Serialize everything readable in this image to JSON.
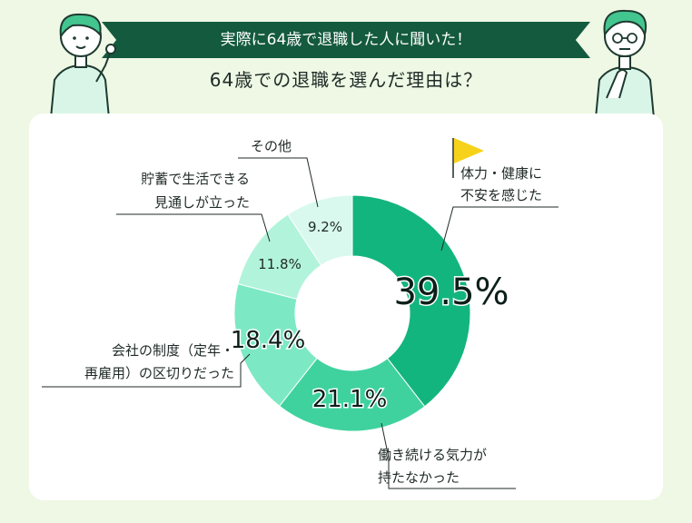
{
  "header": {
    "banner": "実際に64歳で退職した人に聞いた！",
    "subtitle": "64歳での退職を選んだ理由は？"
  },
  "chart_data": {
    "type": "pie",
    "donut": true,
    "title": "64歳での退職を選んだ理由は？",
    "categories": [
      "体力・健康に不安を感じた",
      "働き続ける気力が持たなかった",
      "会社の制度（定年・再雇用）の区切りだった",
      "貯蓄で生活できる見通しが立った",
      "その他"
    ],
    "values": [
      39.5,
      21.1,
      18.4,
      11.8,
      9.2
    ],
    "value_labels": [
      "39.5%",
      "21.1%",
      "18.4%",
      "11.8%",
      "9.2%"
    ],
    "category_lines": [
      [
        "体力・健康に",
        "不安を感じた"
      ],
      [
        "働き続ける気力が",
        "持たなかった"
      ],
      [
        "会社の制度（定年・",
        "再雇用）の区切りだった"
      ],
      [
        "貯蓄で生活できる",
        "見通しが立った"
      ],
      [
        "その他"
      ]
    ],
    "colors": [
      "#13b57e",
      "#3fd29f",
      "#7ce9c4",
      "#b2f3dc",
      "#d9f9ee"
    ],
    "highlight_icon": "yellow-flag-icon"
  }
}
